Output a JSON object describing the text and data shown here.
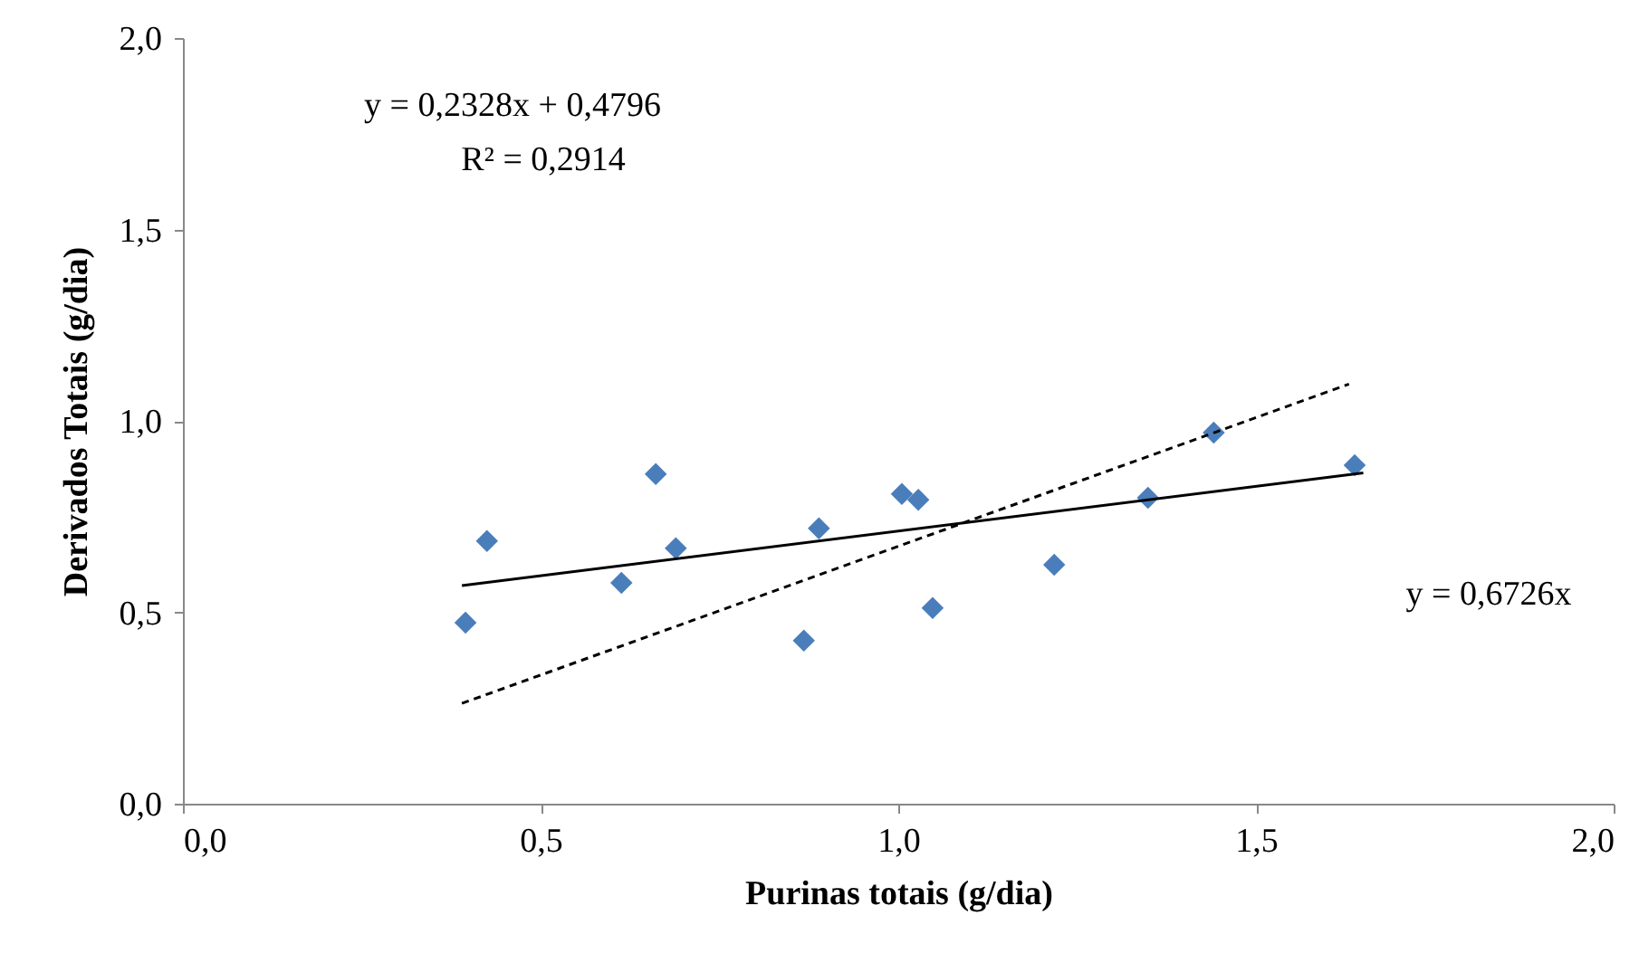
{
  "chart_data": {
    "type": "scatter",
    "xlabel": "Purinas totais (g/dia)",
    "ylabel": "Derivados Totais (g/dia)",
    "xlim": [
      0,
      2
    ],
    "ylim": [
      0,
      2
    ],
    "xticks": [
      {
        "value": 0,
        "label": "0,0"
      },
      {
        "value": 0.5,
        "label": "0,5"
      },
      {
        "value": 1,
        "label": "1,0"
      },
      {
        "value": 1.5,
        "label": "1,5"
      },
      {
        "value": 2,
        "label": "2,0"
      }
    ],
    "yticks": [
      {
        "value": 0,
        "label": "0,0"
      },
      {
        "value": 0.5,
        "label": "0,5"
      },
      {
        "value": 1,
        "label": "1,0"
      },
      {
        "value": 1.5,
        "label": "1,5"
      },
      {
        "value": 2,
        "label": "2,0"
      }
    ],
    "grid": false,
    "series": [
      {
        "marker": "diamond",
        "color": "#4a7ebb",
        "x": [
          0.395,
          0.425,
          0.613,
          0.661,
          0.689,
          0.868,
          0.889,
          1.005,
          1.028,
          1.048,
          1.218,
          1.349,
          1.441,
          1.638
        ],
        "values": [
          0.473,
          0.686,
          0.577,
          0.861,
          0.667,
          0.426,
          0.719,
          0.809,
          0.794,
          0.511,
          0.624,
          0.799,
          0.969,
          0.884
        ]
      },
      {
        "type": "line",
        "marker": "none",
        "color": "#000000",
        "line_style": "solid",
        "x": [
          0.39,
          1.65
        ],
        "values": [
          0.57,
          0.864
        ]
      },
      {
        "type": "line",
        "marker": "none",
        "color": "#000000",
        "line_style": "dashed",
        "x": [
          0.39,
          1.63
        ],
        "values": [
          0.262,
          1.096
        ]
      }
    ],
    "annotations": [
      "y = 0,2328x + 0,4796",
      "R² = 0,2914",
      "y = 0,6726x"
    ]
  }
}
